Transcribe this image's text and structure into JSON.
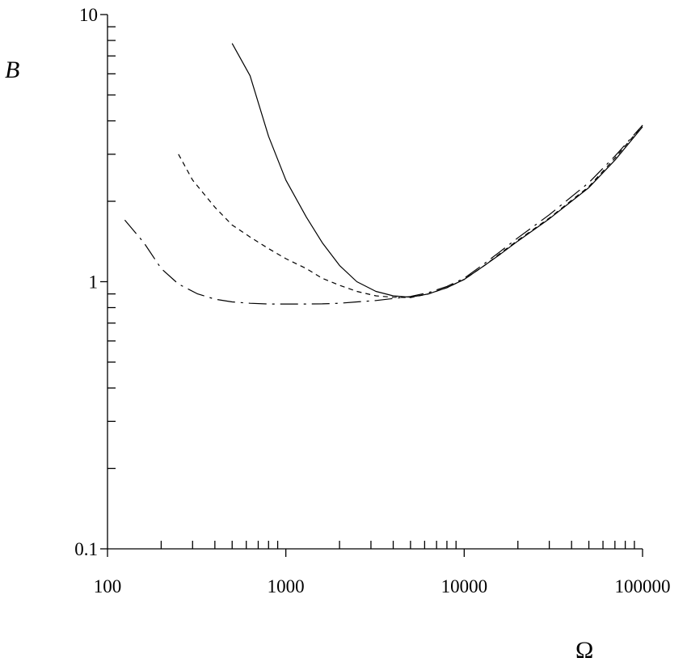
{
  "chart_data": {
    "type": "line",
    "title": "",
    "xlabel": "Ω",
    "ylabel": "B",
    "xscale": "log",
    "yscale": "log",
    "xlim": [
      100,
      100000
    ],
    "ylim": [
      0.1,
      10
    ],
    "x_tick_labels": [
      "100",
      "1000",
      "10000",
      "100000"
    ],
    "y_tick_labels": [
      "0.1",
      "1",
      "10"
    ],
    "grid": false,
    "legend": "none",
    "series": [
      {
        "style": "solid",
        "points": [
          [
            500,
            7.8
          ],
          [
            630,
            5.9
          ],
          [
            800,
            3.5
          ],
          [
            1000,
            2.4
          ],
          [
            1300,
            1.75
          ],
          [
            1600,
            1.4
          ],
          [
            2000,
            1.15
          ],
          [
            2500,
            1.0
          ],
          [
            3200,
            0.92
          ],
          [
            4000,
            0.885
          ],
          [
            5000,
            0.875
          ],
          [
            6300,
            0.9
          ],
          [
            8000,
            0.95
          ],
          [
            10000,
            1.02
          ],
          [
            13000,
            1.15
          ],
          [
            16000,
            1.27
          ],
          [
            20000,
            1.42
          ],
          [
            30000,
            1.72
          ],
          [
            50000,
            2.25
          ],
          [
            70000,
            2.85
          ],
          [
            100000,
            3.8
          ]
        ]
      },
      {
        "style": "dashed",
        "points": [
          [
            250,
            3.0
          ],
          [
            300,
            2.4
          ],
          [
            400,
            1.9
          ],
          [
            500,
            1.63
          ],
          [
            630,
            1.47
          ],
          [
            800,
            1.33
          ],
          [
            1000,
            1.22
          ],
          [
            1300,
            1.12
          ],
          [
            1600,
            1.03
          ],
          [
            2000,
            0.97
          ],
          [
            2500,
            0.92
          ],
          [
            3200,
            0.885
          ],
          [
            4000,
            0.875
          ],
          [
            5000,
            0.872
          ],
          [
            6300,
            0.9
          ],
          [
            8000,
            0.95
          ],
          [
            10000,
            1.02
          ],
          [
            13000,
            1.15
          ],
          [
            16000,
            1.28
          ],
          [
            20000,
            1.43
          ],
          [
            30000,
            1.73
          ],
          [
            50000,
            2.27
          ],
          [
            70000,
            2.9
          ],
          [
            100000,
            3.85
          ]
        ]
      },
      {
        "style": "dash-dot",
        "points": [
          [
            125,
            1.7
          ],
          [
            160,
            1.4
          ],
          [
            200,
            1.12
          ],
          [
            250,
            0.98
          ],
          [
            320,
            0.9
          ],
          [
            400,
            0.86
          ],
          [
            500,
            0.84
          ],
          [
            630,
            0.83
          ],
          [
            800,
            0.825
          ],
          [
            1000,
            0.825
          ],
          [
            1300,
            0.825
          ],
          [
            1600,
            0.826
          ],
          [
            2000,
            0.83
          ],
          [
            2500,
            0.84
          ],
          [
            3200,
            0.85
          ],
          [
            4000,
            0.865
          ],
          [
            5000,
            0.88
          ],
          [
            6300,
            0.91
          ],
          [
            8000,
            0.96
          ],
          [
            10000,
            1.03
          ],
          [
            13000,
            1.17
          ],
          [
            16000,
            1.3
          ],
          [
            20000,
            1.46
          ],
          [
            30000,
            1.78
          ],
          [
            50000,
            2.35
          ],
          [
            70000,
            2.95
          ],
          [
            100000,
            3.85
          ]
        ]
      }
    ]
  }
}
